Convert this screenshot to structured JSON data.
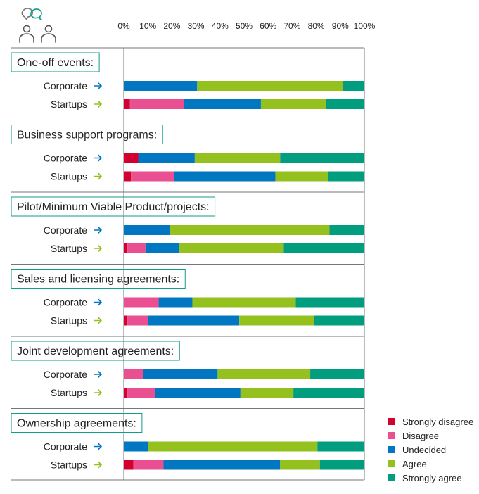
{
  "chart_data": {
    "type": "bar",
    "stacked": true,
    "orientation": "horizontal",
    "x_ticks": [
      "0%",
      "10%",
      "20%",
      "30%",
      "40%",
      "50%",
      "60%",
      "70%",
      "80%",
      "90%",
      "100%"
    ],
    "xlim": [
      0,
      100
    ],
    "legend_position": "bottom-right",
    "categories": [
      "Strongly disagree",
      "Disagree",
      "Undecided",
      "Agree",
      "Strongly agree"
    ],
    "colors": [
      "#d4002f",
      "#e94f91",
      "#0077c0",
      "#95c11f",
      "#009e7e"
    ],
    "arrow_colors": {
      "Corporate": "#0077c0",
      "Startups": "#95c11f"
    },
    "groups": [
      {
        "title": "One-off events:",
        "rows": [
          {
            "label": "Corporate",
            "values": [
              0,
              0,
              30.5,
              60.5,
              9
            ]
          },
          {
            "label": "Startups",
            "values": [
              2.5,
              22.5,
              32,
              27,
              16
            ]
          }
        ]
      },
      {
        "title": "Business support programs:",
        "rows": [
          {
            "label": "Corporate",
            "values": [
              6,
              0,
              23.5,
              35.5,
              35
            ]
          },
          {
            "label": "Startups",
            "values": [
              3,
              18,
              42,
              22,
              15
            ]
          }
        ]
      },
      {
        "title": "Pilot/Minimum Viable Product/projects:",
        "rows": [
          {
            "label": "Corporate",
            "values": [
              0,
              0,
              19,
              66.5,
              14.5
            ]
          },
          {
            "label": "Startups",
            "values": [
              1.5,
              7.5,
              14,
              43.5,
              33.5
            ]
          }
        ]
      },
      {
        "title": "Sales and licensing agreements:",
        "rows": [
          {
            "label": "Corporate",
            "values": [
              0,
              14.5,
              14,
              43,
              28.5
            ]
          },
          {
            "label": "Startups",
            "values": [
              1.5,
              8.5,
              38,
              31,
              21
            ]
          }
        ]
      },
      {
        "title": "Joint development agreements:",
        "rows": [
          {
            "label": "Corporate",
            "values": [
              0,
              8,
              31,
              38.5,
              22.5
            ]
          },
          {
            "label": "Startups",
            "values": [
              1.5,
              11.5,
              35.5,
              22,
              29.5
            ]
          }
        ]
      },
      {
        "title": "Ownership agreements:",
        "rows": [
          {
            "label": "Corporate",
            "values": [
              0,
              0,
              10,
              70.5,
              19.5
            ]
          },
          {
            "label": "Startups",
            "values": [
              4,
              12.5,
              48.5,
              16.5,
              18.5
            ]
          }
        ]
      }
    ]
  },
  "icons": {
    "header": "people-chat-icon"
  }
}
